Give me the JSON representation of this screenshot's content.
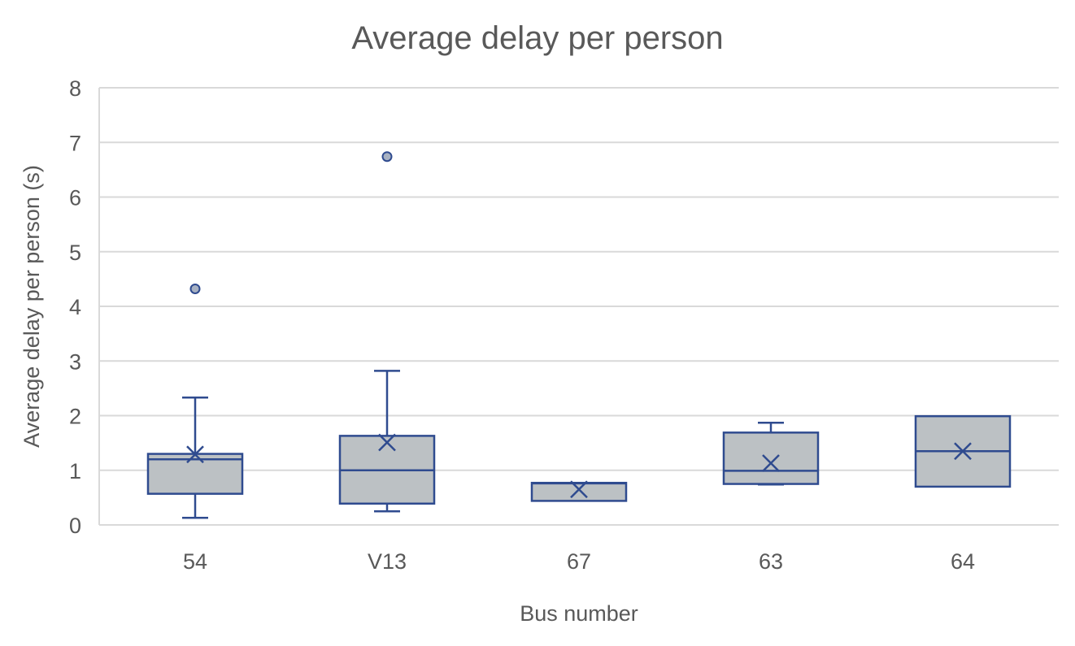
{
  "chart_data": {
    "type": "box",
    "title": "Average delay per person",
    "xlabel": "Bus number",
    "ylabel": "Average delay per person (s)",
    "ylim": [
      0,
      8
    ],
    "yticks": [
      0,
      1,
      2,
      3,
      4,
      5,
      6,
      7,
      8
    ],
    "grid": true,
    "categories": [
      "54",
      "V13",
      "67",
      "63",
      "64"
    ],
    "boxes": [
      {
        "category": "54",
        "min": 0.13,
        "q1": 0.57,
        "median": 1.2,
        "q3": 1.3,
        "max": 2.33,
        "mean": 1.29,
        "outliers": [
          4.32
        ]
      },
      {
        "category": "V13",
        "min": 0.25,
        "q1": 0.39,
        "median": 1.0,
        "q3": 1.63,
        "max": 2.82,
        "mean": 1.51,
        "outliers": [
          6.74
        ]
      },
      {
        "category": "67",
        "min": 0.44,
        "q1": 0.44,
        "median": 0.76,
        "q3": 0.77,
        "max": 0.77,
        "mean": 0.65,
        "outliers": []
      },
      {
        "category": "63",
        "min": 0.74,
        "q1": 0.75,
        "median": 0.99,
        "q3": 1.69,
        "max": 1.87,
        "mean": 1.13,
        "outliers": []
      },
      {
        "category": "64",
        "min": 0.7,
        "q1": 0.7,
        "median": 1.35,
        "q3": 1.99,
        "max": 1.99,
        "mean": 1.35,
        "outliers": []
      }
    ],
    "colors": {
      "box_fill": "#bcc1c4",
      "box_stroke": "#2f4b8f",
      "grid": "#d9d9d9",
      "text": "#595959",
      "outlier_fill": "#a7b1c2"
    }
  }
}
